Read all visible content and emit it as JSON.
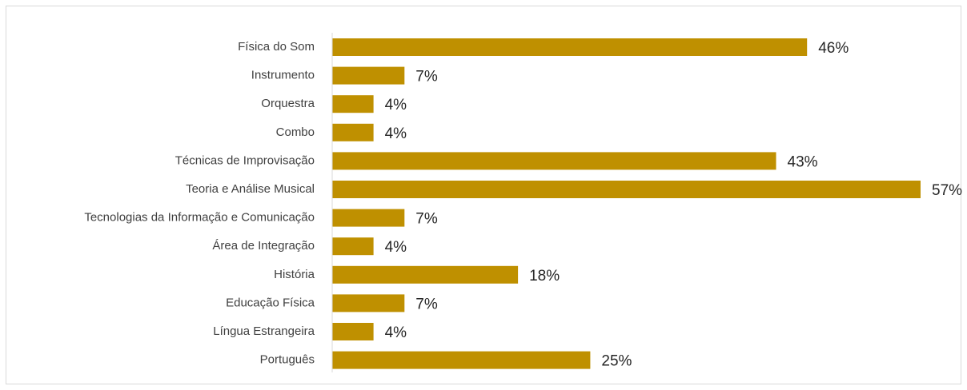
{
  "chart_data": {
    "type": "bar",
    "orientation": "horizontal",
    "title": "",
    "xlabel": "",
    "ylabel": "",
    "categories": [
      "Física do Som",
      "Instrumento",
      "Orquestra",
      "Combo",
      "Técnicas de Improvisação",
      "Teoria e Análise Musical",
      "Tecnologias da Informação e Comunicação",
      "Área de Integração",
      "História",
      "Educação Física",
      "Língua Estrangeira",
      "Português"
    ],
    "values": [
      46,
      7,
      4,
      4,
      43,
      57,
      7,
      4,
      18,
      7,
      4,
      25
    ],
    "value_labels": [
      "46%",
      "7%",
      "4%",
      "4%",
      "43%",
      "57%",
      "7%",
      "4%",
      "18%",
      "7%",
      "4%",
      "25%"
    ],
    "xlim": [
      0,
      57
    ],
    "unit": "%",
    "grid": false,
    "legend": "none",
    "bar_color": "#bf9000"
  }
}
